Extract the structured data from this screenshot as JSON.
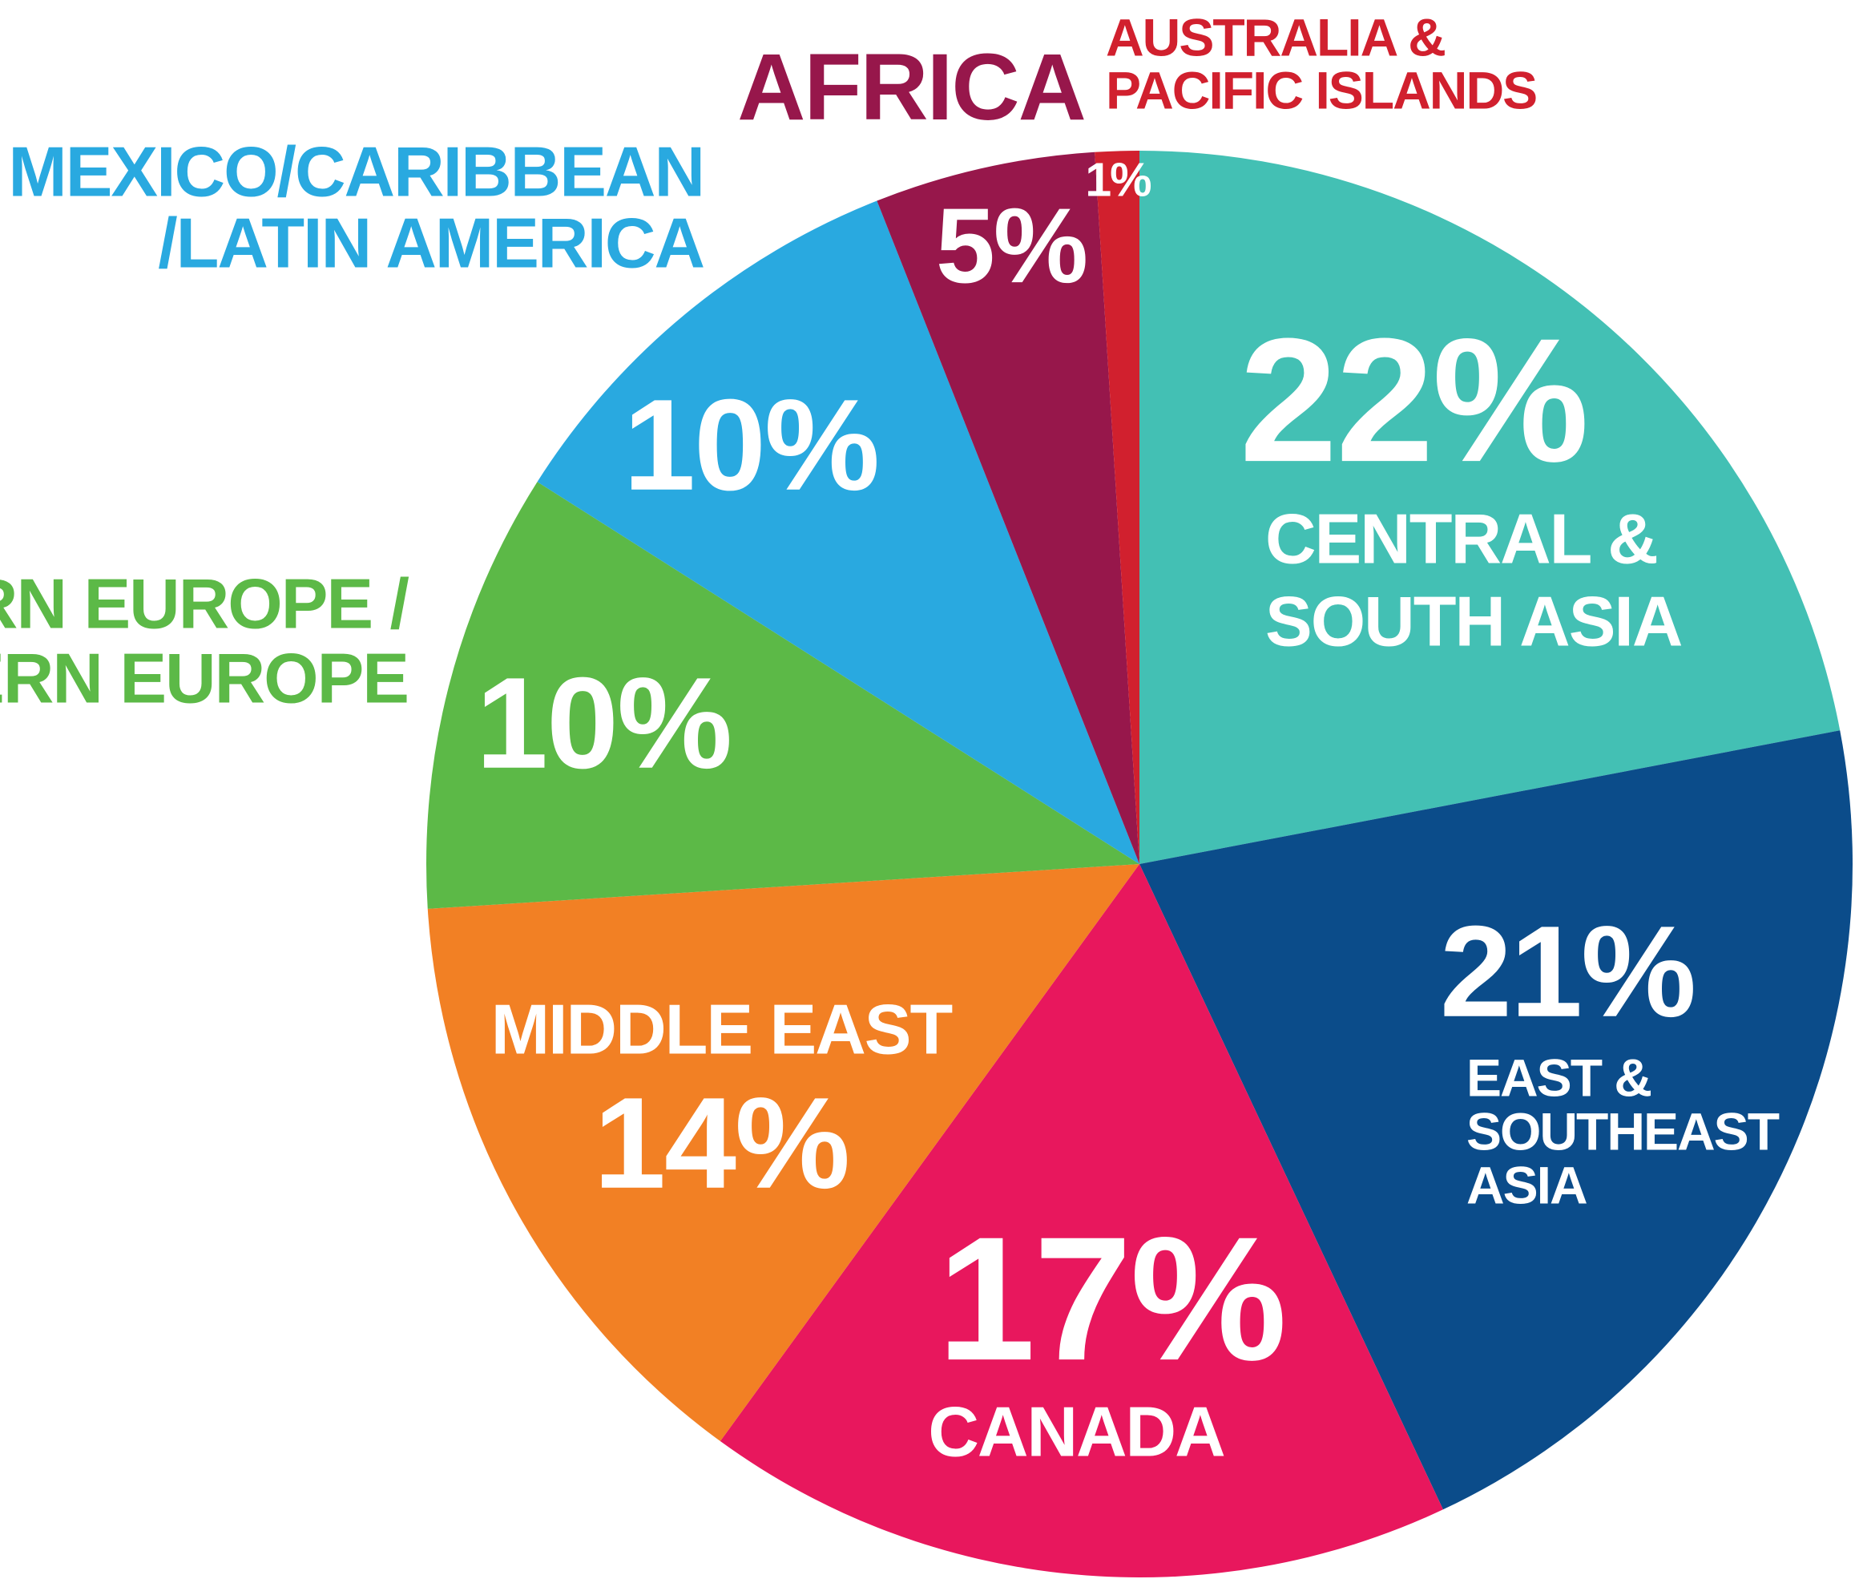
{
  "chart_data": {
    "type": "pie",
    "categories": [
      [
        "CENTRAL &",
        "SOUTH ASIA"
      ],
      [
        "EAST &",
        "SOUTHEAST",
        "ASIA"
      ],
      [
        "CANADA"
      ],
      [
        "MIDDLE EAST"
      ],
      [
        "WESTERN EUROPE /",
        "EASTERN EUROPE"
      ],
      [
        "MEXICO/CARIBBEAN",
        "/LATIN AMERICA"
      ],
      [
        "AFRICA"
      ],
      [
        "AUSTRALIA &",
        "PACIFIC ISLANDS"
      ]
    ],
    "values": [
      22,
      21,
      17,
      14,
      10,
      10,
      5,
      1
    ],
    "value_labels": [
      "22%",
      "21%",
      "17%",
      "14%",
      "10%",
      "10%",
      "5%",
      "1%"
    ],
    "colors": [
      "#43c0b4",
      "#0b4c8a",
      "#e8175d",
      "#f28024",
      "#5cb947",
      "#29a9e0",
      "#97174b",
      "#d1202e"
    ]
  }
}
